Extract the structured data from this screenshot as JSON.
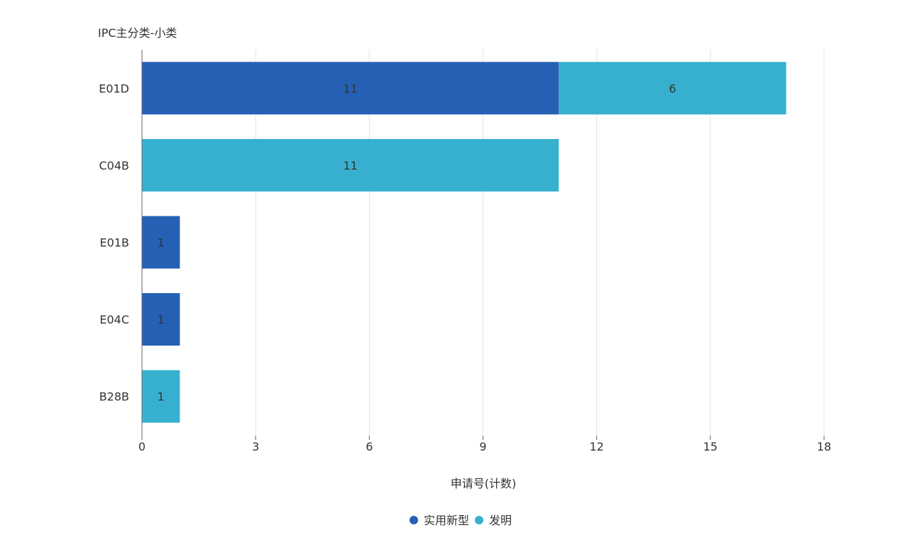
{
  "chart_data": {
    "type": "bar",
    "orientation": "horizontal",
    "stacked": true,
    "y_axis_title": "IPC主分类-小类",
    "x_axis_title": "申请号(计数)",
    "categories": [
      "E01D",
      "C04B",
      "E01B",
      "E04C",
      "B28B"
    ],
    "series": [
      {
        "name": "实用新型",
        "color": "#2560b5",
        "values": [
          11,
          0,
          1,
          1,
          0
        ]
      },
      {
        "name": "发明",
        "color": "#37b0d0",
        "values": [
          6,
          11,
          0,
          0,
          1
        ]
      }
    ],
    "x_ticks": [
      0,
      3,
      6,
      9,
      12,
      15,
      18
    ],
    "xlim": [
      0,
      18
    ],
    "grid": "vertical",
    "legend_position": "bottom-center",
    "show_data_labels": true
  }
}
